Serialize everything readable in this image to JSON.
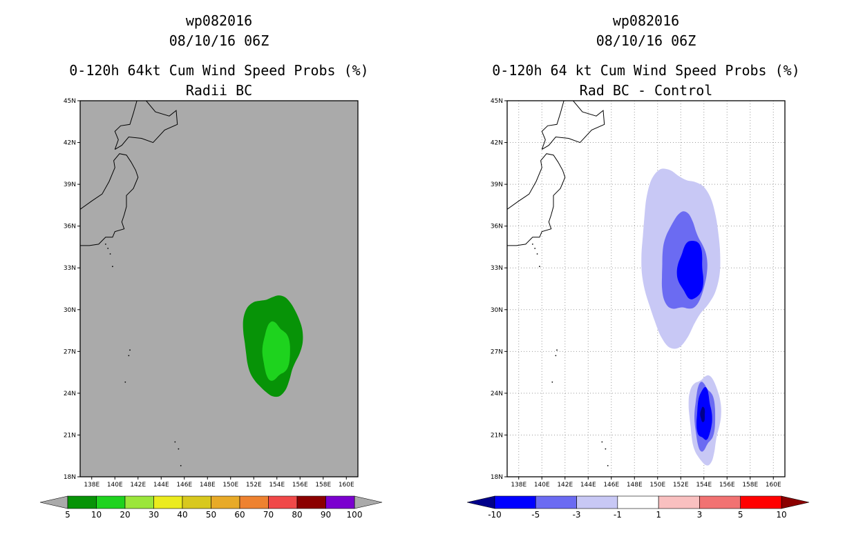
{
  "chart_data": [
    {
      "type": "heatmap",
      "storm_id": "wp082016",
      "datetime": "08/10/16 06Z",
      "title": "0-120h 64kt Cum Wind Speed Probs (%)",
      "subtitle": "Radii BC",
      "background": "#aaaaaa",
      "lon_range": [
        137,
        161
      ],
      "lat_range": [
        18,
        45
      ],
      "x_ticks": [
        "138E",
        "140E",
        "142E",
        "144E",
        "146E",
        "148E",
        "150E",
        "152E",
        "154E",
        "156E",
        "158E",
        "160E"
      ],
      "y_ticks": [
        "45N",
        "42N",
        "39N",
        "36N",
        "33N",
        "30N",
        "27N",
        "24N",
        "21N",
        "18N"
      ],
      "colorbar": {
        "levels": [
          "5",
          "10",
          "20",
          "30",
          "40",
          "50",
          "60",
          "70",
          "80",
          "90",
          "100"
        ],
        "colors": [
          "#079307",
          "#1ed31e",
          "#9be63b",
          "#ebeb1e",
          "#d8c81e",
          "#e8aa28",
          "#ee8230",
          "#f04848",
          "#8b0000",
          "#7b00cf"
        ],
        "under_color": "#aaaaaa",
        "over_color": "#aaaaaa"
      },
      "regions": [
        {
          "level": "5-10",
          "color": "#079307",
          "center_lon": 153.5,
          "center_lat": 27.7,
          "lon_span": [
            151.2,
            156.2
          ],
          "lat_span": [
            24.0,
            31.1
          ]
        },
        {
          "level": "10-20",
          "color": "#1ed31e",
          "center_lon": 153.8,
          "center_lat": 27.0,
          "lon_span": [
            152.8,
            155.2
          ],
          "lat_span": [
            25.0,
            29.0
          ]
        }
      ]
    },
    {
      "type": "heatmap",
      "storm_id": "wp082016",
      "datetime": "08/10/16 06Z",
      "title": "0-120h 64 kt Cum Wind Speed Probs (%)",
      "subtitle": "Rad BC - Control",
      "background": "#ffffff",
      "lon_range": [
        137,
        161
      ],
      "lat_range": [
        18,
        45
      ],
      "x_ticks": [
        "138E",
        "140E",
        "142E",
        "144E",
        "146E",
        "148E",
        "150E",
        "152E",
        "154E",
        "156E",
        "158E",
        "160E"
      ],
      "y_ticks": [
        "45N",
        "42N",
        "39N",
        "36N",
        "33N",
        "30N",
        "27N",
        "24N",
        "21N",
        "18N"
      ],
      "colorbar": {
        "levels": [
          "-10",
          "-5",
          "-3",
          "-1",
          "1",
          "3",
          "5",
          "10"
        ],
        "colors": [
          "#0000ff",
          "#6b6bf2",
          "#c8c8f5",
          "#ffffff",
          "#f9c0c0",
          "#f17272",
          "#ff0000"
        ],
        "under_color": "#00008b",
        "over_color": "#8b0000"
      },
      "regions": [
        {
          "level": "-3 to -1",
          "color": "#c8c8f5",
          "center_lon": 151.7,
          "center_lat": 33.3,
          "lon_span": [
            148.6,
            155.4
          ],
          "lat_span": [
            28.5,
            40.8
          ]
        },
        {
          "level": "-5 to -3",
          "color": "#6b6bf2",
          "center_lon": 152.2,
          "center_lat": 33.0,
          "lon_span": [
            150.3,
            154.2
          ],
          "lat_span": [
            30.0,
            36.9
          ]
        },
        {
          "level": "-10 to -5",
          "color": "#0000ff",
          "center_lon": 152.9,
          "center_lat": 32.6,
          "lon_span": [
            151.8,
            154.0
          ],
          "lat_span": [
            31.0,
            35.2
          ]
        },
        {
          "level": "-3 to -1",
          "color": "#c8c8f5",
          "center_lon": 154.0,
          "center_lat": 22.3,
          "lon_span": [
            152.8,
            155.5
          ],
          "lat_span": [
            19.0,
            25.3
          ]
        },
        {
          "level": "-5 to -3",
          "color": "#6b6bf2",
          "center_lon": 154.0,
          "center_lat": 22.4,
          "lon_span": [
            153.2,
            155.0
          ],
          "lat_span": [
            19.9,
            24.6
          ]
        },
        {
          "level": "-10 to -5",
          "color": "#0000ff",
          "center_lon": 154.0,
          "center_lat": 22.5,
          "lon_span": [
            153.4,
            154.7
          ],
          "lat_span": [
            20.5,
            24.2
          ]
        },
        {
          "level": "< -10",
          "color": "#00008b",
          "center_lon": 153.9,
          "center_lat": 22.5,
          "lon_span": [
            153.7,
            154.1
          ],
          "lat_span": [
            21.9,
            23.0
          ]
        }
      ]
    }
  ]
}
